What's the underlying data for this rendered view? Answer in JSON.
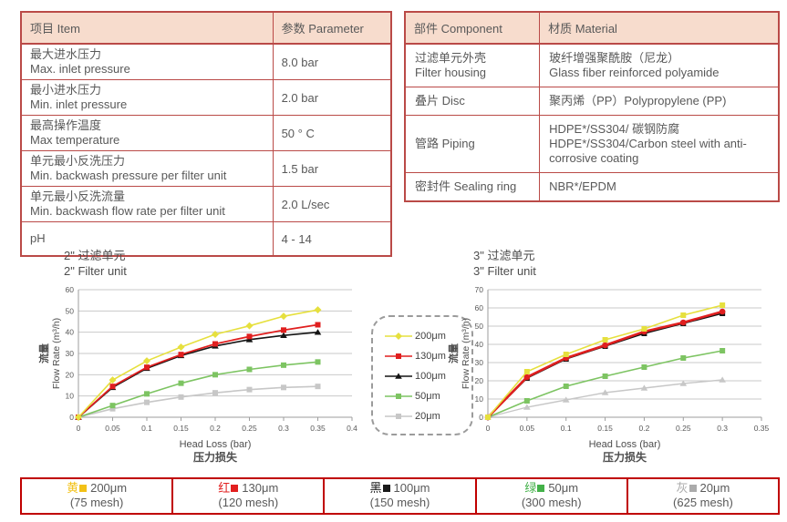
{
  "colors": {
    "table_border": "#BA4A47",
    "header_bg": "#F7DCCD",
    "text": "#595959",
    "bar_border": "#C00000",
    "grid": "#C9C9C9",
    "axis": "#9E9E9E"
  },
  "spec_table": {
    "headers": [
      "项目 Item",
      "参数 Parameter"
    ],
    "rows": [
      {
        "item": [
          "最大进水压力",
          "Max. inlet pressure"
        ],
        "value": "8.0 bar"
      },
      {
        "item": [
          "最小进水压力",
          "Min. inlet pressure"
        ],
        "value": "2.0 bar"
      },
      {
        "item": [
          "最高操作温度",
          "Max temperature"
        ],
        "value": "50 ° C"
      },
      {
        "item": [
          "单元最小反洗压力",
          "Min. backwash pressure per filter unit"
        ],
        "value": "1.5 bar"
      },
      {
        "item": [
          "单元最小反洗流量",
          "Min. backwash flow rate per filter unit"
        ],
        "value": "2.0 L/sec"
      },
      {
        "item": [
          "pH"
        ],
        "value": "4 - 14"
      }
    ]
  },
  "material_table": {
    "headers": [
      "部件 Component",
      "材质 Material"
    ],
    "rows": [
      {
        "component": [
          "过滤单元外壳",
          "Filter housing"
        ],
        "material": [
          "玻纤增强聚酰胺（尼龙）",
          "Glass fiber reinforced polyamide"
        ]
      },
      {
        "component": [
          "叠片 Disc"
        ],
        "material": [
          "聚丙烯（PP）Polypropylene (PP)"
        ]
      },
      {
        "component": [
          "管路 Piping"
        ],
        "material": [
          "HDPE*/SS304/ 碳钢防腐",
          "HDPE*/SS304/Carbon steel with anti-corrosive coating"
        ]
      },
      {
        "component": [
          "密封件 Sealing ring"
        ],
        "material": [
          "NBR*/EPDM"
        ]
      }
    ]
  },
  "chart_data": [
    {
      "type": "line",
      "title": [
        "2\" 过滤单元",
        "2\" Filter unit"
      ],
      "xlabel": [
        "Head Loss (bar)",
        "压力损失"
      ],
      "ylabel": [
        "流量",
        "Flow Rate (m³/h)"
      ],
      "x": [
        0,
        0.05,
        0.1,
        0.15,
        0.2,
        0.25,
        0.3,
        0.35
      ],
      "xlim": [
        0,
        0.4
      ],
      "xticks": [
        "0",
        "0.05",
        "0.1",
        "0.15",
        "0.2",
        "0.25",
        "0.3",
        "0.35",
        "0.4"
      ],
      "ylim": [
        0,
        60
      ],
      "ytick_step": 10,
      "grid": true,
      "series": [
        {
          "name": "200μm",
          "color": "#E6E03E",
          "marker": "diamond",
          "width": 1.6,
          "values": [
            0,
            17.5,
            26.5,
            33,
            39,
            43,
            47.5,
            50.5
          ]
        },
        {
          "name": "130μm",
          "color": "#E01F1F",
          "marker": "square",
          "width": 1.8,
          "values": [
            0,
            14.5,
            23.5,
            29.5,
            34.5,
            38,
            41,
            43.5
          ]
        },
        {
          "name": "100μm",
          "color": "#141414",
          "marker": "triangle",
          "width": 1.6,
          "values": [
            0,
            14,
            23,
            29,
            33.5,
            36.5,
            38.5,
            40
          ]
        },
        {
          "name": "50μm",
          "color": "#7DC462",
          "marker": "square",
          "width": 1.6,
          "values": [
            0,
            5.5,
            11,
            16,
            20,
            22.5,
            24.5,
            26
          ]
        },
        {
          "name": "20μm",
          "color": "#C7C7C7",
          "marker": "square",
          "width": 1.6,
          "values": [
            0,
            4,
            7,
            9.5,
            11.5,
            13,
            14,
            14.5
          ]
        }
      ]
    },
    {
      "type": "line",
      "title": [
        "3\" 过滤单元",
        "3\" Filter unit"
      ],
      "xlabel": [
        "Head Loss (bar)",
        "压力损失"
      ],
      "ylabel": [
        "流量",
        "Flow Rate (m³/h)"
      ],
      "x": [
        0,
        0.05,
        0.1,
        0.15,
        0.2,
        0.25,
        0.3
      ],
      "xlim": [
        0,
        0.35
      ],
      "xticks": [
        "0",
        "0.05",
        "0.1",
        "0.15",
        "0.2",
        "0.25",
        "0.3",
        "0.35"
      ],
      "ylim": [
        0,
        70
      ],
      "ytick_step": 10,
      "grid": true,
      "series": [
        {
          "name": "200μm",
          "color": "#E6E03E",
          "marker": "square",
          "width": 1.6,
          "values": [
            0,
            25,
            34.5,
            42.5,
            48.5,
            56,
            61.5
          ]
        },
        {
          "name": "130μm",
          "color": "#E01F1F",
          "marker": "circle",
          "width": 2.6,
          "values": [
            0,
            22,
            32.5,
            39.5,
            47,
            52,
            58
          ]
        },
        {
          "name": "100μm",
          "color": "#141414",
          "marker": "square",
          "width": 1.6,
          "values": [
            0,
            21.5,
            32,
            39,
            46,
            51.5,
            57
          ]
        },
        {
          "name": "50μm",
          "color": "#7DC462",
          "marker": "square",
          "width": 1.6,
          "values": [
            0,
            9,
            17,
            22.5,
            27.5,
            32.5,
            36.5
          ]
        },
        {
          "name": "20μm",
          "color": "#C7C7C7",
          "marker": "triangle",
          "width": 1.4,
          "values": [
            0,
            5.5,
            9.5,
            13.5,
            16,
            18.5,
            20.5
          ]
        }
      ]
    }
  ],
  "chart_legend": {
    "items": [
      {
        "label": "200μm",
        "color": "#E6E03E",
        "marker": "diamond"
      },
      {
        "label": "130μm",
        "color": "#E01F1F",
        "marker": "square"
      },
      {
        "label": "100μm",
        "color": "#141414",
        "marker": "triangle"
      },
      {
        "label": "50μm",
        "color": "#7DC462",
        "marker": "square"
      },
      {
        "label": "20μm",
        "color": "#C7C7C7",
        "marker": "square"
      }
    ]
  },
  "mesh_legend_bar": {
    "items": [
      {
        "color_name": "黄",
        "color": "#F2C117",
        "size": "200μm",
        "mesh": "(75 mesh)"
      },
      {
        "color_name": "红",
        "color": "#E21F1F",
        "size": "130μm",
        "mesh": "(120 mesh)"
      },
      {
        "color_name": "黑",
        "color": "#1A1A1A",
        "size": "100μm",
        "mesh": "(150 mesh)"
      },
      {
        "color_name": "绿",
        "color": "#43B149",
        "size": "50μm",
        "mesh": "(300 mesh)"
      },
      {
        "color_name": "灰",
        "color": "#ABABAB",
        "size": "20μm",
        "mesh": "(625 mesh)"
      }
    ]
  }
}
